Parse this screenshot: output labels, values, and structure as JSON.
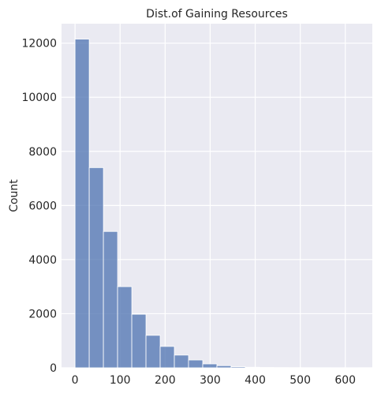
{
  "chart_data": {
    "type": "bar",
    "title": "Dist.of Gaining Resources",
    "xlabel": "",
    "ylabel": "Count",
    "xlim": [
      -30,
      660
    ],
    "ylim": [
      0,
      12720
    ],
    "xticks": [
      0,
      100,
      200,
      300,
      400,
      500,
      600
    ],
    "yticks": [
      0,
      2000,
      4000,
      6000,
      8000,
      10000,
      12000
    ],
    "grid": true,
    "bin_edges": [
      0,
      31.5,
      63,
      94.5,
      126,
      157.5,
      189,
      220.5,
      252,
      283.5,
      315,
      346.5,
      378,
      409.5,
      441,
      472.5,
      504,
      535.5,
      567,
      598.5,
      630
    ],
    "counts": [
      12150,
      7400,
      5040,
      3000,
      1980,
      1200,
      790,
      470,
      290,
      145,
      80,
      40,
      22,
      12,
      8,
      5,
      3,
      2,
      1,
      1
    ],
    "bar_color": "#4c72b0",
    "background": "#eaeaf2"
  }
}
